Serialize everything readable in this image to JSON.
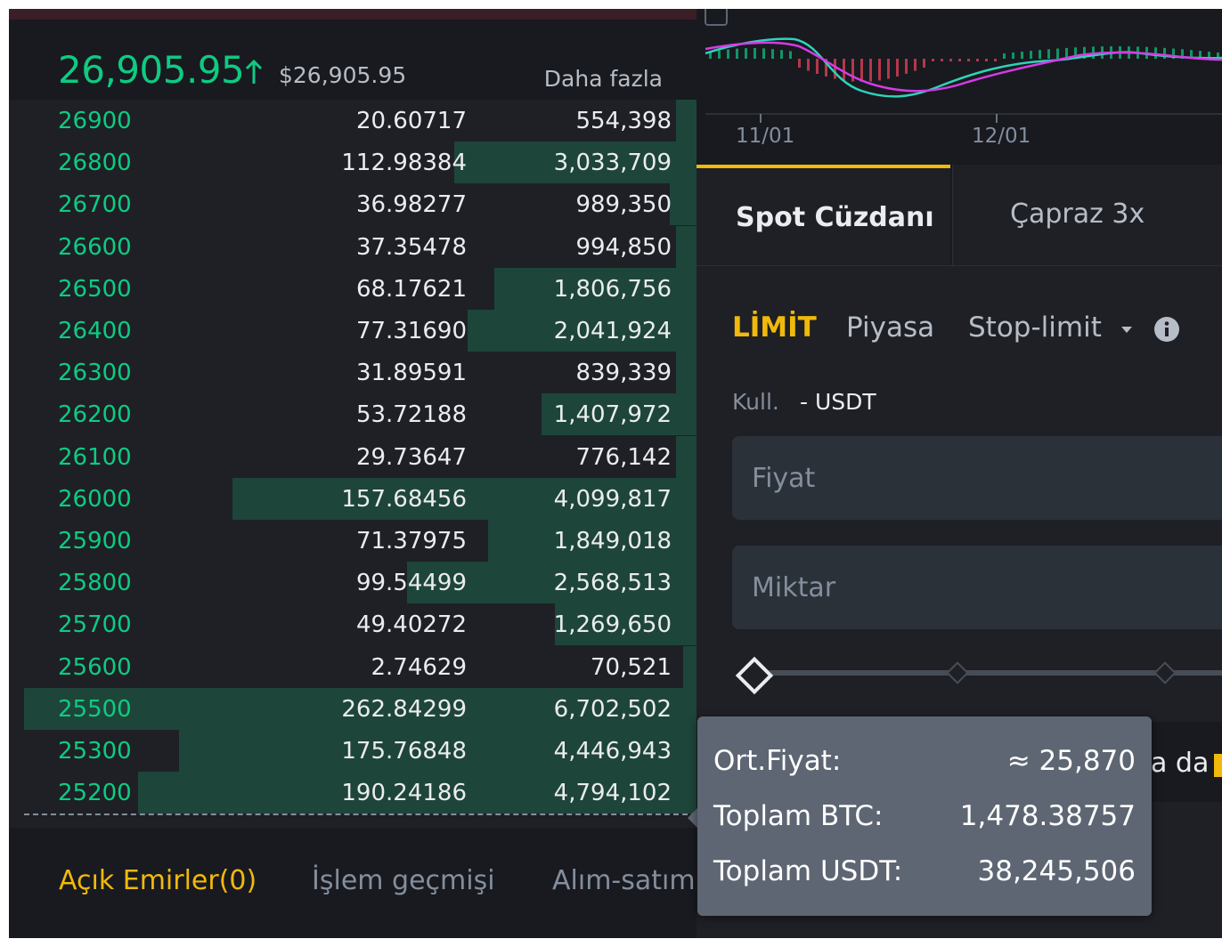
{
  "orderbook": {
    "last_price": "26,905.95",
    "usd_price": "$26,905.95",
    "more_link": "Daha fazla",
    "colors": {
      "bid": "#0ecb81",
      "depth_bar": "#1e4c3e"
    },
    "rows": [
      {
        "price": "26900",
        "amount": "20.60717",
        "total": "554,398",
        "depth": 0.03
      },
      {
        "price": "26800",
        "amount": "112.98384",
        "total": "3,033,709",
        "depth": 0.36
      },
      {
        "price": "26700",
        "amount": "36.98277",
        "total": "989,350",
        "depth": 0.04
      },
      {
        "price": "26600",
        "amount": "37.35478",
        "total": "994,850",
        "depth": 0.03
      },
      {
        "price": "26500",
        "amount": "68.17621",
        "total": "1,806,756",
        "depth": 0.3
      },
      {
        "price": "26400",
        "amount": "77.31690",
        "total": "2,041,924",
        "depth": 0.34
      },
      {
        "price": "26300",
        "amount": "31.89591",
        "total": "839,339",
        "depth": 0.03
      },
      {
        "price": "26200",
        "amount": "53.72188",
        "total": "1,407,972",
        "depth": 0.23
      },
      {
        "price": "26100",
        "amount": "29.73647",
        "total": "776,142",
        "depth": 0.03
      },
      {
        "price": "26000",
        "amount": "157.68456",
        "total": "4,099,817",
        "depth": 0.69
      },
      {
        "price": "25900",
        "amount": "71.37975",
        "total": "1,849,018",
        "depth": 0.31
      },
      {
        "price": "25800",
        "amount": "99.54499",
        "total": "2,568,513",
        "depth": 0.43
      },
      {
        "price": "25700",
        "amount": "49.40272",
        "total": "1,269,650",
        "depth": 0.21
      },
      {
        "price": "25600",
        "amount": "2.74629",
        "total": "70,521",
        "depth": 0.02
      },
      {
        "price": "25500",
        "amount": "262.84299",
        "total": "6,702,502",
        "depth": 1.0
      },
      {
        "price": "25300",
        "amount": "175.76848",
        "total": "4,446,943",
        "depth": 0.77
      },
      {
        "price": "25200",
        "amount": "190.24186",
        "total": "4,794,102",
        "depth": 0.83
      }
    ]
  },
  "bottom_tabs": {
    "open_orders": "Açık Emirler(0)",
    "history": "İşlem geçmişi",
    "trades": "Alım-satım"
  },
  "chart": {
    "x_ticks": [
      "11/01",
      "12/01"
    ],
    "colors": {
      "line_fast": "#2ed3b7",
      "line_slow": "#d63be6",
      "hist_pos": "#0ecb81",
      "hist_neg": "#f6465d"
    }
  },
  "trade": {
    "wallet_tabs": {
      "spot": "Spot Cüzdanı",
      "cross": "Çapraz 3x"
    },
    "order_types": {
      "limit": "LİMİT",
      "market": "Piyasa",
      "stop_limit": "Stop-limit"
    },
    "available": {
      "label": "Kull.",
      "value": "- USDT"
    },
    "price_placeholder": "Fiyat",
    "qty_placeholder": "Miktar",
    "partial_text": "a da"
  },
  "tooltip": {
    "avg_label": "Ort.Fiyat:",
    "avg_value": "≈ 25,870",
    "btc_label": "Toplam BTC:",
    "btc_value": "1,478.38757",
    "usdt_label": "Toplam USDT:",
    "usdt_value": "38,245,506"
  },
  "accent_color": "#f0b90b"
}
